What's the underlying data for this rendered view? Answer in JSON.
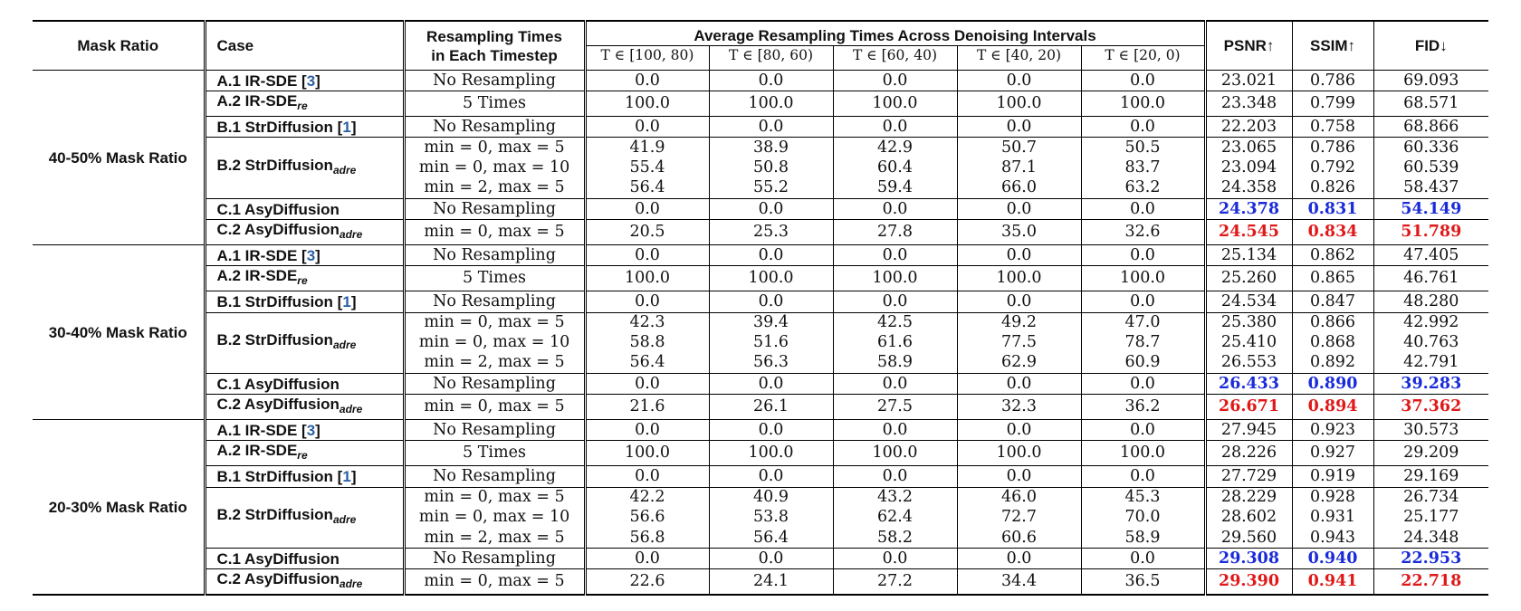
{
  "headers": {
    "mask_ratio": "Mask Ratio",
    "case": "Case",
    "resampling_line1": "Resampling Times",
    "resampling_line2": "in Each Timestep",
    "average": "Average Resampling Times Across Denoising Intervals",
    "intervals": [
      "T ∈ [100, 80)",
      "T ∈ [80, 60)",
      "T ∈ [60, 40)",
      "T ∈ [40, 20)",
      "T ∈ [20, 0)"
    ],
    "psnr": "PSNR↑",
    "ssim": "SSIM↑",
    "fid": "FID↓"
  },
  "groups": [
    {
      "label": "40-50% Mask Ratio",
      "rows": [
        {
          "case": "A.1 IR-SDE",
          "cite": "3",
          "resampling": "No Resampling",
          "intervals": [
            "0.0",
            "0.0",
            "0.0",
            "0.0",
            "0.0"
          ],
          "psnr": "23.021",
          "ssim": "0.786",
          "fid": "69.093"
        },
        {
          "case": "A.2 IR-SDE",
          "sub": "re",
          "resampling": "5 Times",
          "intervals": [
            "100.0",
            "100.0",
            "100.0",
            "100.0",
            "100.0"
          ],
          "psnr": "23.348",
          "ssim": "0.799",
          "fid": "68.571"
        },
        {
          "case": "B.1 StrDiffusion",
          "cite": "1",
          "resampling": "No Resampling",
          "intervals": [
            "0.0",
            "0.0",
            "0.0",
            "0.0",
            "0.0"
          ],
          "psnr": "22.203",
          "ssim": "0.758",
          "fid": "68.866"
        },
        {
          "case": "B.2 StrDiffusion",
          "sub": "adre",
          "span": 3,
          "resampling": "min = 0, max = 5",
          "intervals": [
            "41.9",
            "38.9",
            "42.9",
            "50.7",
            "50.5"
          ],
          "psnr": "23.065",
          "ssim": "0.786",
          "fid": "60.336"
        },
        {
          "cont": true,
          "resampling": "min = 0, max = 10",
          "intervals": [
            "55.4",
            "50.8",
            "60.4",
            "87.1",
            "83.7"
          ],
          "psnr": "23.094",
          "ssim": "0.792",
          "fid": "60.539"
        },
        {
          "cont": true,
          "resampling": "min = 2, max = 5",
          "intervals": [
            "56.4",
            "55.2",
            "59.4",
            "66.0",
            "63.2"
          ],
          "psnr": "24.358",
          "ssim": "0.826",
          "fid": "58.437"
        },
        {
          "case": "C.1 AsyDiffusion",
          "resampling": "No Resampling",
          "intervals": [
            "0.0",
            "0.0",
            "0.0",
            "0.0",
            "0.0"
          ],
          "psnr": "24.378",
          "ssim": "0.831",
          "fid": "54.149",
          "metric_color": "blue"
        },
        {
          "case": "C.2 AsyDiffusion",
          "sub": "adre",
          "resampling": "min = 0, max = 5",
          "intervals": [
            "20.5",
            "25.3",
            "27.8",
            "35.0",
            "32.6"
          ],
          "psnr": "24.545",
          "ssim": "0.834",
          "fid": "51.789",
          "metric_color": "red"
        }
      ]
    },
    {
      "label": "30-40% Mask Ratio",
      "rows": [
        {
          "case": "A.1 IR-SDE",
          "cite": "3",
          "resampling": "No Resampling",
          "intervals": [
            "0.0",
            "0.0",
            "0.0",
            "0.0",
            "0.0"
          ],
          "psnr": "25.134",
          "ssim": "0.862",
          "fid": "47.405"
        },
        {
          "case": "A.2 IR-SDE",
          "sub": "re",
          "resampling": "5 Times",
          "intervals": [
            "100.0",
            "100.0",
            "100.0",
            "100.0",
            "100.0"
          ],
          "psnr": "25.260",
          "ssim": "0.865",
          "fid": "46.761"
        },
        {
          "case": "B.1 StrDiffusion",
          "cite": "1",
          "resampling": "No Resampling",
          "intervals": [
            "0.0",
            "0.0",
            "0.0",
            "0.0",
            "0.0"
          ],
          "psnr": "24.534",
          "ssim": "0.847",
          "fid": "48.280"
        },
        {
          "case": "B.2 StrDiffusion",
          "sub": "adre",
          "span": 3,
          "resampling": "min = 0, max = 5",
          "intervals": [
            "42.3",
            "39.4",
            "42.5",
            "49.2",
            "47.0"
          ],
          "psnr": "25.380",
          "ssim": "0.866",
          "fid": "42.992"
        },
        {
          "cont": true,
          "resampling": "min = 0, max = 10",
          "intervals": [
            "58.8",
            "51.6",
            "61.6",
            "77.5",
            "78.7"
          ],
          "psnr": "25.410",
          "ssim": "0.868",
          "fid": "40.763"
        },
        {
          "cont": true,
          "resampling": "min = 2, max = 5",
          "intervals": [
            "56.4",
            "56.3",
            "58.9",
            "62.9",
            "60.9"
          ],
          "psnr": "26.553",
          "ssim": "0.892",
          "fid": "42.791"
        },
        {
          "case": "C.1 AsyDiffusion",
          "resampling": "No Resampling",
          "intervals": [
            "0.0",
            "0.0",
            "0.0",
            "0.0",
            "0.0"
          ],
          "psnr": "26.433",
          "ssim": "0.890",
          "fid": "39.283",
          "metric_color": "blue"
        },
        {
          "case": "C.2 AsyDiffusion",
          "sub": "adre",
          "resampling": "min = 0, max = 5",
          "intervals": [
            "21.6",
            "26.1",
            "27.5",
            "32.3",
            "36.2"
          ],
          "psnr": "26.671",
          "ssim": "0.894",
          "fid": "37.362",
          "metric_color": "red"
        }
      ]
    },
    {
      "label": "20-30% Mask Ratio",
      "rows": [
        {
          "case": "A.1 IR-SDE",
          "cite": "3",
          "resampling": "No Resampling",
          "intervals": [
            "0.0",
            "0.0",
            "0.0",
            "0.0",
            "0.0"
          ],
          "psnr": "27.945",
          "ssim": "0.923",
          "fid": "30.573"
        },
        {
          "case": "A.2 IR-SDE",
          "sub": "re",
          "resampling": "5 Times",
          "intervals": [
            "100.0",
            "100.0",
            "100.0",
            "100.0",
            "100.0"
          ],
          "psnr": "28.226",
          "ssim": "0.927",
          "fid": "29.209"
        },
        {
          "case": "B.1 StrDiffusion",
          "cite": "1",
          "resampling": "No Resampling",
          "intervals": [
            "0.0",
            "0.0",
            "0.0",
            "0.0",
            "0.0"
          ],
          "psnr": "27.729",
          "ssim": "0.919",
          "fid": "29.169"
        },
        {
          "case": "B.2 StrDiffusion",
          "sub": "adre",
          "span": 3,
          "resampling": "min = 0, max = 5",
          "intervals": [
            "42.2",
            "40.9",
            "43.2",
            "46.0",
            "45.3"
          ],
          "psnr": "28.229",
          "ssim": "0.928",
          "fid": "26.734"
        },
        {
          "cont": true,
          "resampling": "min = 0, max = 10",
          "intervals": [
            "56.6",
            "53.8",
            "62.4",
            "72.7",
            "70.0"
          ],
          "psnr": "28.602",
          "ssim": "0.931",
          "fid": "25.177"
        },
        {
          "cont": true,
          "resampling": "min = 2, max = 5",
          "intervals": [
            "56.8",
            "56.4",
            "58.2",
            "60.6",
            "58.9"
          ],
          "psnr": "29.560",
          "ssim": "0.943",
          "fid": "24.348"
        },
        {
          "case": "C.1 AsyDiffusion",
          "resampling": "No Resampling",
          "intervals": [
            "0.0",
            "0.0",
            "0.0",
            "0.0",
            "0.0"
          ],
          "psnr": "29.308",
          "ssim": "0.940",
          "fid": "22.953",
          "metric_color": "blue"
        },
        {
          "case": "C.2 AsyDiffusion",
          "sub": "adre",
          "resampling": "min = 0, max = 5",
          "intervals": [
            "22.6",
            "24.1",
            "27.2",
            "34.4",
            "36.5"
          ],
          "psnr": "29.390",
          "ssim": "0.941",
          "fid": "22.718",
          "metric_color": "red"
        }
      ]
    }
  ]
}
